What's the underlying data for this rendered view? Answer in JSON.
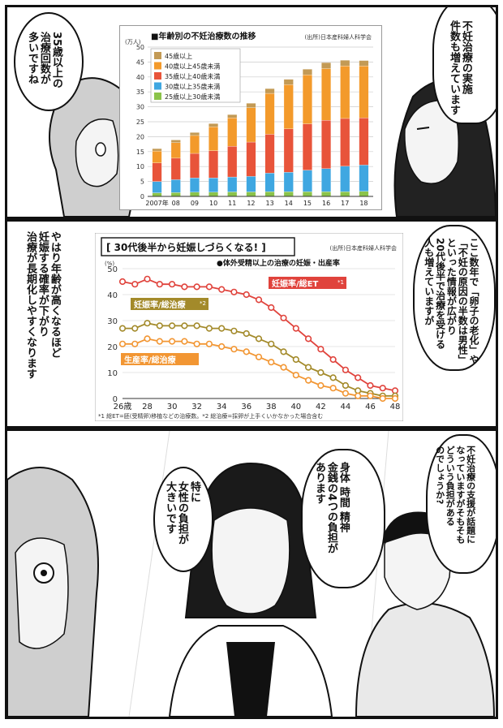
{
  "chart_data": [
    {
      "type": "bar",
      "stacked": true,
      "title": "年齢別の不妊治療数の推移",
      "source": "(出所)日本産科婦人科学会",
      "ylabel": "(万人)",
      "ylim": [
        0,
        50
      ],
      "yticks": [
        "0",
        "5",
        "10",
        "15",
        "20",
        "25",
        "30",
        "35",
        "40",
        "45",
        "50"
      ],
      "categories": [
        "2007年",
        "08",
        "09",
        "10",
        "11",
        "12",
        "13",
        "14",
        "15",
        "16",
        "17",
        "18"
      ],
      "legend_position": "top-left",
      "series": [
        {
          "name": "25歳以上30歳未満",
          "color": "#8bc34a",
          "values": [
            1.2,
            1.3,
            1.4,
            1.4,
            1.5,
            1.5,
            1.6,
            1.6,
            1.6,
            1.6,
            1.6,
            1.7
          ]
        },
        {
          "name": "30歳以上35歳未満",
          "color": "#3fa7e1",
          "values": [
            3.8,
            4.3,
            4.8,
            4.8,
            5.0,
            5.2,
            6.2,
            6.5,
            7.2,
            7.7,
            8.5,
            8.8
          ]
        },
        {
          "name": "35歳以上40歳未満",
          "color": "#e8543a",
          "values": [
            6.2,
            7.2,
            8.2,
            9.1,
            10.3,
            11.5,
            13.0,
            14.5,
            15.5,
            16.2,
            16.0,
            15.8
          ]
        },
        {
          "name": "40歳以上45歳未満",
          "color": "#f39a2b",
          "values": [
            4.0,
            5.2,
            6.0,
            8.0,
            9.5,
            11.5,
            13.7,
            14.8,
            16.4,
            17.3,
            17.6,
            17.4
          ]
        },
        {
          "name": "45歳以上",
          "color": "#c39a55",
          "values": [
            0.8,
            0.9,
            1.0,
            1.1,
            1.1,
            1.5,
            1.6,
            1.8,
            1.9,
            2.0,
            1.9,
            1.8
          ]
        }
      ]
    },
    {
      "type": "line",
      "title": "30代後半から妊娠しづらくなる!",
      "source": "(出所)日本産科婦人科学会",
      "subtitle": "●体外受精以上の治療の妊娠・出産率",
      "ylabel": "(%)",
      "ylim": [
        0,
        50
      ],
      "yticks": [
        "0",
        "10",
        "20",
        "30",
        "40",
        "50"
      ],
      "xlim": [
        26,
        48
      ],
      "xticks": [
        "26歳",
        "28",
        "30",
        "32",
        "34",
        "36",
        "38",
        "40",
        "42",
        "44",
        "46",
        "48"
      ],
      "x": [
        26,
        27,
        28,
        29,
        30,
        31,
        32,
        33,
        34,
        35,
        36,
        37,
        38,
        39,
        40,
        41,
        42,
        43,
        44,
        45,
        46,
        47,
        48
      ],
      "series": [
        {
          "name": "妊娠率/総ET",
          "mark": "*1",
          "color": "#e0433c",
          "values": [
            45,
            44,
            46,
            44,
            44,
            43,
            43,
            43,
            42,
            41,
            40,
            38,
            35,
            31,
            27,
            23,
            19,
            15,
            11,
            8,
            5,
            4,
            3
          ]
        },
        {
          "name": "妊娠率/総治療",
          "mark": "*2",
          "color": "#a38a2a",
          "values": [
            27,
            27,
            29,
            28,
            28,
            28,
            28,
            27,
            27,
            26,
            25,
            23,
            21,
            18,
            15,
            12,
            10,
            8,
            5,
            3,
            2,
            1,
            1
          ]
        },
        {
          "name": "生産率/総治療",
          "mark": "",
          "color": "#f29633",
          "values": [
            21,
            21,
            23,
            22,
            22,
            22,
            21,
            21,
            20,
            19,
            18,
            16,
            14,
            12,
            9,
            7,
            5,
            4,
            2,
            1,
            1,
            0,
            0
          ]
        }
      ],
      "footnote": "*1 総ET=胚(受精卵)移植などの治療数。*2 総治療=採卵が上手くいかなかった場合含む"
    }
  ],
  "dialogue": {
    "p1_left": "35歳以上の\n治療回数が\n多いですね",
    "p1_right": "不妊治療の実施\n件数も増えています",
    "p2_left": "やはり年齢が高くなるほど\n妊娠する確率が下がり\n治療が長期化しやすくなります",
    "p2_right": "ここ数年で「卵子の老化」や\n「不妊の原因の半数は男性」\nといった情報が広がり\n20代後半で治療を受ける\n人も増えていますが",
    "p3_left": "特に\n女性の負担が\n大きいです",
    "p3_mid": "身体 時間 精神\n金銭の4つの負担が\nあります",
    "p3_right": "不妊治療の支援が話題に\nなっていますがそもそも\nどういう負担がある\nのでしょうか?"
  }
}
